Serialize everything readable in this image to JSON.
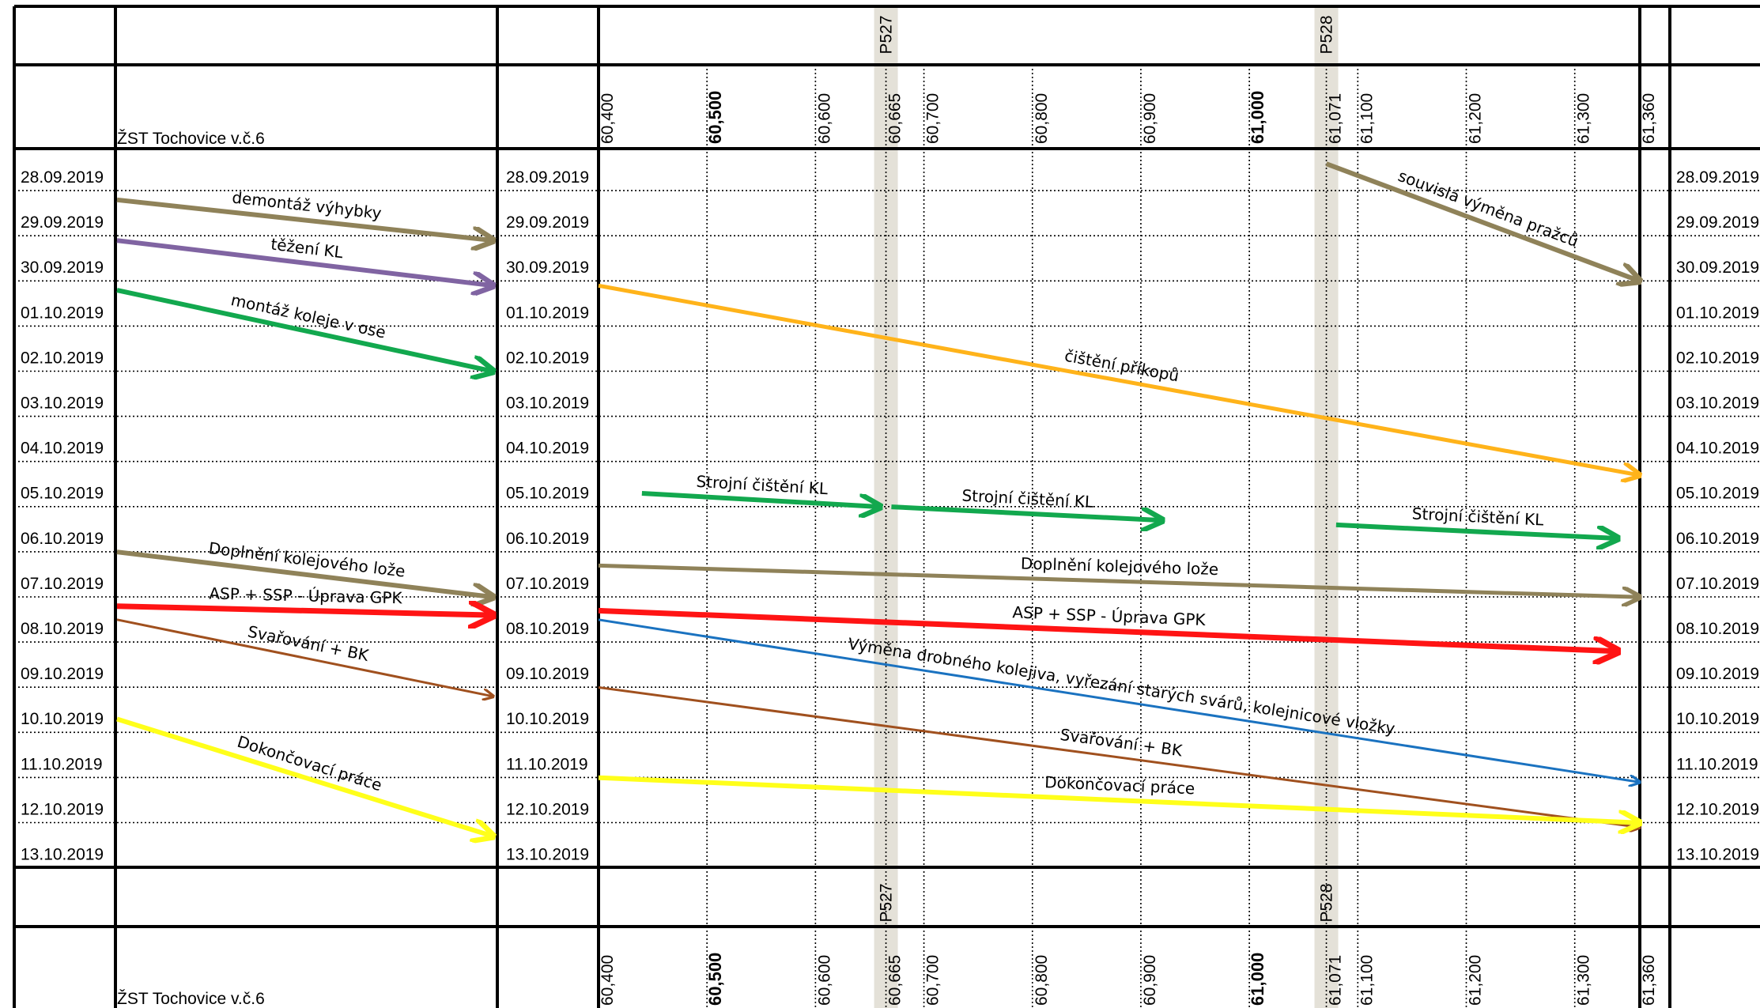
{
  "station_label": "ŽST Tochovice v.č.6",
  "dates": [
    "28.09.2019",
    "29.09.2019",
    "30.09.2019",
    "01.10.2019",
    "02.10.2019",
    "03.10.2019",
    "04.10.2019",
    "05.10.2019",
    "06.10.2019",
    "07.10.2019",
    "08.10.2019",
    "09.10.2019",
    "10.10.2019",
    "11.10.2019",
    "12.10.2019",
    "13.10.2019"
  ],
  "km_marks": [
    {
      "label": "60,400",
      "km": 60.4,
      "bold": false
    },
    {
      "label": "60,500",
      "km": 60.5,
      "bold": true
    },
    {
      "label": "60,600",
      "km": 60.6,
      "bold": false
    },
    {
      "label": "60,665",
      "km": 60.665,
      "bold": false
    },
    {
      "label": "60,700",
      "km": 60.7,
      "bold": false
    },
    {
      "label": "60,800",
      "km": 60.8,
      "bold": false
    },
    {
      "label": "60,900",
      "km": 60.9,
      "bold": false
    },
    {
      "label": "61,000",
      "km": 61.0,
      "bold": true
    },
    {
      "label": "61,071",
      "km": 61.071,
      "bold": false
    },
    {
      "label": "61,100",
      "km": 61.1,
      "bold": false
    },
    {
      "label": "61,200",
      "km": 61.2,
      "bold": false
    },
    {
      "label": "61,300",
      "km": 61.3,
      "bold": false
    },
    {
      "label": "61,360",
      "km": 61.36,
      "bold": false
    }
  ],
  "crossings": [
    {
      "label": "P527",
      "km": 60.665
    },
    {
      "label": "P528",
      "km": 61.071
    }
  ],
  "colors": {
    "olive": "#8f8259",
    "purple": "#8064a2",
    "green": "#12a84e",
    "orange": "#ffb31a",
    "red": "#ff1414",
    "brown": "#a0501e",
    "yellow": "#ffff1a",
    "blue": "#1a72c0",
    "crossing": "#e4e1d8"
  },
  "station_activities": [
    {
      "label": "demontáž výhybky",
      "color": "olive",
      "from_day": 1.1,
      "to_day": 2.0,
      "width": 6
    },
    {
      "label": "těžení KL",
      "color": "purple",
      "from_day": 2.0,
      "to_day": 3.0,
      "width": 6
    },
    {
      "label": "montáž koleje v ose",
      "color": "green",
      "from_day": 3.1,
      "to_day": 4.9,
      "width": 6
    },
    {
      "label": "Doplnění kolejového lože",
      "color": "olive",
      "from_day": 8.9,
      "to_day": 9.9,
      "width": 6
    },
    {
      "label": "ASP + SSP - Úprava GPK",
      "color": "red",
      "from_day": 10.1,
      "to_day": 10.3,
      "width": 7
    },
    {
      "label": "Svařování + BK",
      "color": "brown",
      "from_day": 10.4,
      "to_day": 12.1,
      "width": 3
    },
    {
      "label": "Dokončovací práce",
      "color": "yellow",
      "from_day": 12.6,
      "to_day": 15.2,
      "width": 6
    }
  ],
  "track_activities": [
    {
      "label": "souvislá výměna pražců",
      "color": "olive",
      "from_km": 61.071,
      "to_km": 61.36,
      "from_day": 0.3,
      "to_day": 2.9,
      "width": 6
    },
    {
      "label": "čištění příkopů",
      "color": "orange",
      "from_km": 60.4,
      "to_km": 61.36,
      "from_day": 3.0,
      "to_day": 7.2,
      "width": 5
    },
    {
      "label": "Strojní čištění KL",
      "color": "green",
      "from_km": 60.44,
      "to_km": 60.66,
      "from_day": 7.6,
      "to_day": 7.9,
      "width": 6
    },
    {
      "label": "Strojní čištění KL",
      "color": "green",
      "from_km": 60.67,
      "to_km": 60.92,
      "from_day": 7.9,
      "to_day": 8.2,
      "width": 6
    },
    {
      "label": "Strojní čištění KL",
      "color": "green",
      "from_km": 61.08,
      "to_km": 61.34,
      "from_day": 8.3,
      "to_day": 8.6,
      "width": 6
    },
    {
      "label": "Doplnění kolejového lože",
      "color": "olive",
      "from_km": 60.4,
      "to_km": 61.36,
      "from_day": 9.2,
      "to_day": 9.9,
      "width": 5
    },
    {
      "label": "ASP + SSP - Úprava GPK",
      "color": "red",
      "from_km": 60.4,
      "to_km": 61.34,
      "from_day": 10.2,
      "to_day": 11.1,
      "width": 7
    },
    {
      "label": "Výměna drobného kolejiva, vyřezání starých svárů, kolejnicové vložky",
      "color": "blue",
      "from_km": 60.4,
      "to_km": 61.36,
      "from_day": 10.4,
      "to_day": 14.0,
      "width": 3
    },
    {
      "label": "Svařování + BK",
      "color": "brown",
      "from_km": 60.4,
      "to_km": 61.36,
      "from_day": 11.9,
      "to_day": 15.0,
      "width": 3
    },
    {
      "label": "Dokončovací práce",
      "color": "yellow",
      "from_km": 60.4,
      "to_km": 61.36,
      "from_day": 13.9,
      "to_day": 14.9,
      "width": 6
    }
  ]
}
